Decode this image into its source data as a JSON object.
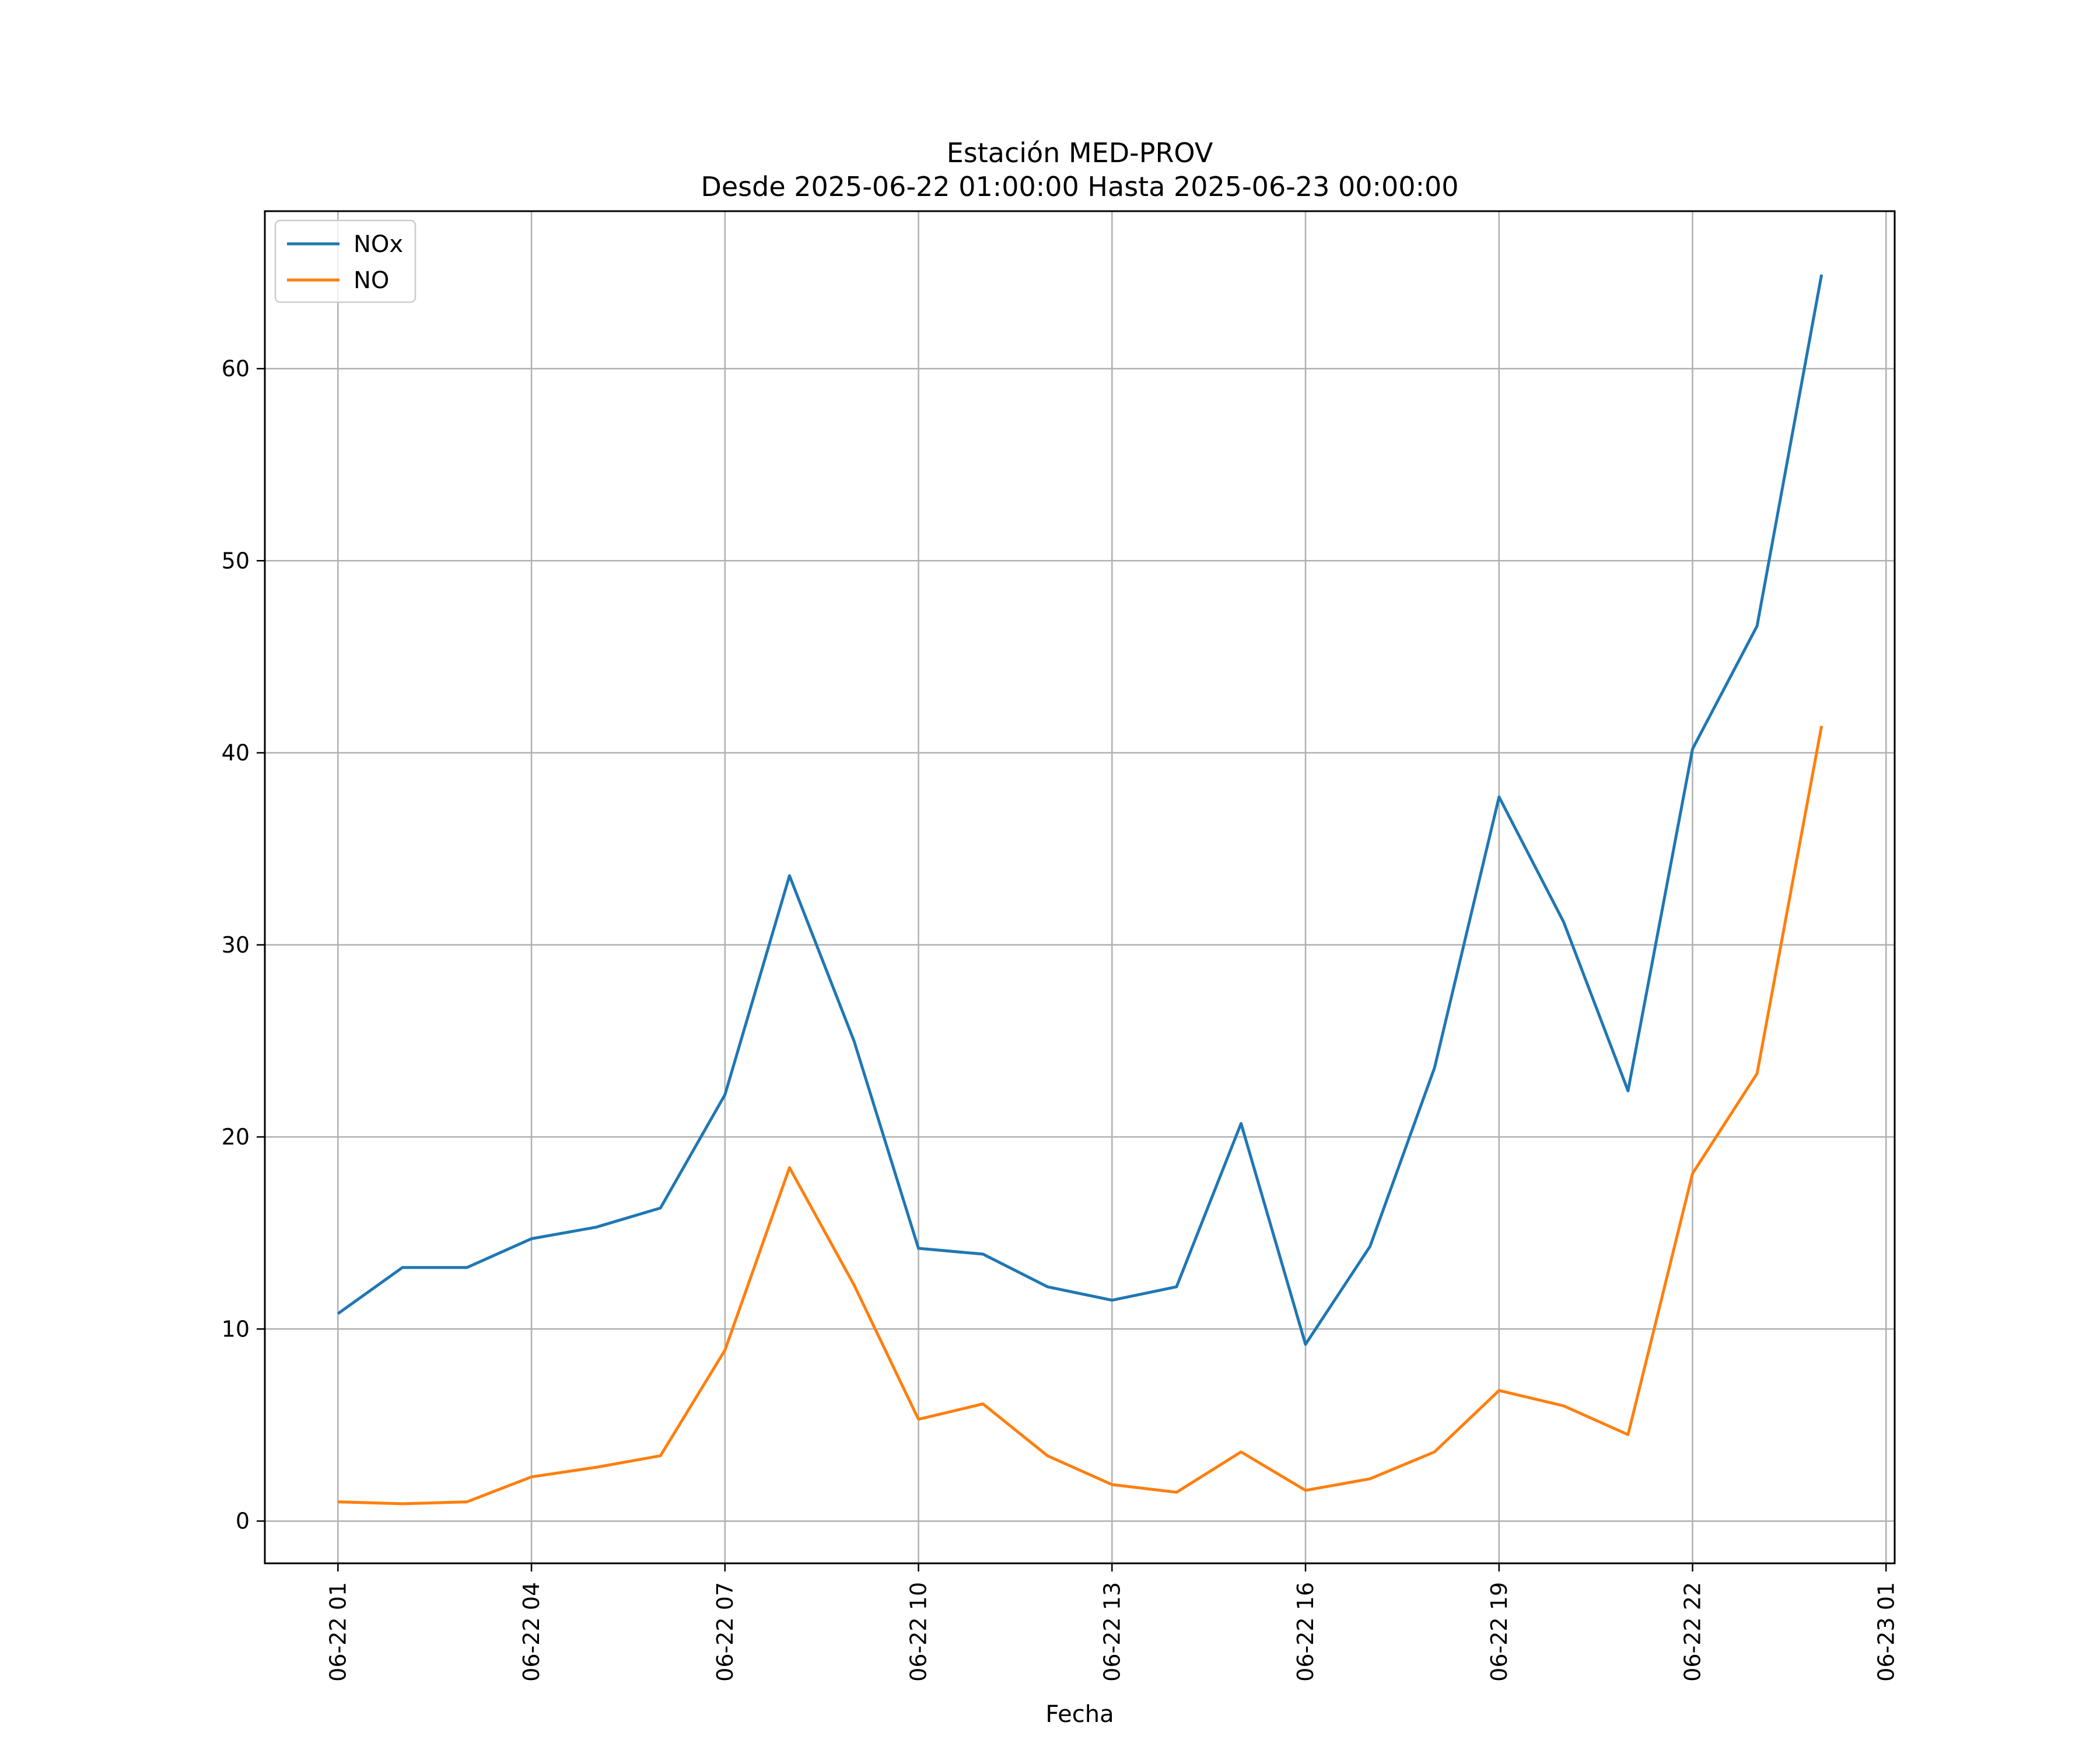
{
  "chart_data": {
    "type": "line",
    "title": "Estación MED-PROV",
    "subtitle": "Desde 2025-06-22 01:00:00 Hasta 2025-06-23 00:00:00",
    "xlabel": "Fecha",
    "ylabel": "",
    "x": [
      "2025-06-22 01:00",
      "2025-06-22 02:00",
      "2025-06-22 03:00",
      "2025-06-22 04:00",
      "2025-06-22 05:00",
      "2025-06-22 06:00",
      "2025-06-22 07:00",
      "2025-06-22 08:00",
      "2025-06-22 09:00",
      "2025-06-22 10:00",
      "2025-06-22 11:00",
      "2025-06-22 12:00",
      "2025-06-22 13:00",
      "2025-06-22 14:00",
      "2025-06-22 15:00",
      "2025-06-22 16:00",
      "2025-06-22 17:00",
      "2025-06-22 18:00",
      "2025-06-22 19:00",
      "2025-06-22 20:00",
      "2025-06-22 21:00",
      "2025-06-22 22:00",
      "2025-06-22 23:00",
      "2025-06-23 00:00"
    ],
    "series": [
      {
        "name": "NOx",
        "color": "#1f77b4",
        "values": [
          10.8,
          13.2,
          13.2,
          14.7,
          15.3,
          16.3,
          22.2,
          33.6,
          25.0,
          14.2,
          13.9,
          12.2,
          11.5,
          12.2,
          20.7,
          9.2,
          14.3,
          23.6,
          37.7,
          31.2,
          22.4,
          40.2,
          46.6,
          64.9
        ]
      },
      {
        "name": "NO",
        "color": "#ff7f0e",
        "values": [
          1.0,
          0.9,
          1.0,
          2.3,
          2.8,
          3.4,
          8.9,
          18.4,
          12.3,
          5.3,
          6.1,
          3.4,
          1.9,
          1.5,
          3.6,
          1.6,
          2.2,
          3.6,
          6.8,
          6.0,
          4.5,
          18.1,
          23.3,
          41.4
        ]
      }
    ],
    "yticks": [
      0,
      10,
      20,
      30,
      40,
      50,
      60
    ],
    "ylim": [
      -2.2,
      68.2
    ],
    "xlim": [
      "2025-06-21 23:52",
      "2025-06-23 01:08"
    ],
    "xticks": [
      {
        "label": "06-22 01",
        "date": "2025-06-22 01:00"
      },
      {
        "label": "06-22 04",
        "date": "2025-06-22 04:00"
      },
      {
        "label": "06-22 07",
        "date": "2025-06-22 07:00"
      },
      {
        "label": "06-22 10",
        "date": "2025-06-22 10:00"
      },
      {
        "label": "06-22 13",
        "date": "2025-06-22 13:00"
      },
      {
        "label": "06-22 16",
        "date": "2025-06-22 16:00"
      },
      {
        "label": "06-22 19",
        "date": "2025-06-22 19:00"
      },
      {
        "label": "06-22 22",
        "date": "2025-06-22 22:00"
      },
      {
        "label": "06-23 01",
        "date": "2025-06-23 01:00"
      }
    ],
    "grid": true,
    "legend_position": "top-left"
  }
}
